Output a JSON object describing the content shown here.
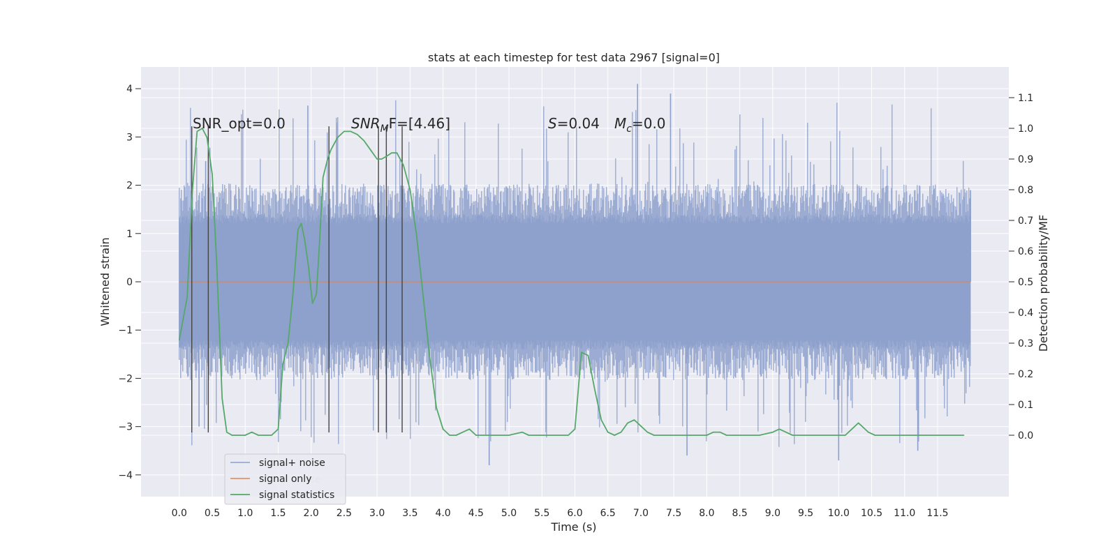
{
  "chart_data": {
    "type": "line",
    "title": "stats at each timestep for test data 2967 [signal=0]",
    "xlabel": "Time (s)",
    "ylabel": "Whitened strain",
    "y2label": "Detection probability/MF",
    "xlim": [
      -0.58,
      12.58
    ],
    "ylim": [
      -4.45,
      4.45
    ],
    "y2lim": [
      -0.2,
      1.2
    ],
    "x_ticks": [
      0.0,
      0.5,
      1.0,
      1.5,
      2.0,
      2.5,
      3.0,
      3.5,
      4.0,
      4.5,
      5.0,
      5.5,
      6.0,
      6.5,
      7.0,
      7.5,
      8.0,
      8.5,
      9.0,
      9.5,
      10.0,
      10.5,
      11.0,
      11.5
    ],
    "x_tick_labels": [
      "0.0",
      "0.5",
      "1.0",
      "1.5",
      "2.0",
      "2.5",
      "3.0",
      "3.5",
      "4.0",
      "4.5",
      "5.0",
      "5.5",
      "6.0",
      "6.5",
      "7.0",
      "7.5",
      "8.0",
      "8.5",
      "9.0",
      "9.5",
      "10.0",
      "10.5",
      "11.0",
      "11.5"
    ],
    "y_ticks": [
      -4,
      -3,
      -2,
      -1,
      0,
      1,
      2,
      3,
      4
    ],
    "y_tick_labels": [
      "−4",
      "−3",
      "−2",
      "−1",
      "0",
      "1",
      "2",
      "3",
      "4"
    ],
    "y2_ticks": [
      0.0,
      0.1,
      0.2,
      0.3,
      0.4,
      0.5,
      0.6,
      0.7,
      0.8,
      0.9,
      1.0,
      1.1
    ],
    "y2_tick_labels": [
      "0.0",
      "0.1",
      "0.2",
      "0.3",
      "0.4",
      "0.5",
      "0.6",
      "0.7",
      "0.8",
      "0.9",
      "1.0",
      "1.1"
    ],
    "grid": true,
    "legend_position": "lower-left",
    "colors": {
      "plot_bg": "#eaeaf2",
      "noise": "#8da0cb",
      "signal_only": "#dd8452",
      "statistics": "#55a868",
      "vline": "#444444"
    },
    "series": [
      {
        "name": "signal+ noise",
        "axis": "left",
        "x_range": [
          0.0,
          12.0
        ],
        "envelope": {
          "core_min": -1.3,
          "core_max": 1.3,
          "mid_min": -2.0,
          "mid_max": 2.0,
          "peak_min": -3.8,
          "peak_max": 4.1
        }
      },
      {
        "name": "signal only",
        "axis": "left",
        "x": [
          0.0,
          12.0
        ],
        "y": [
          0.0,
          0.0
        ]
      },
      {
        "name": "signal statistics",
        "axis": "right",
        "x": [
          0.0,
          0.12,
          0.2,
          0.27,
          0.35,
          0.42,
          0.5,
          0.57,
          0.65,
          0.72,
          0.8,
          0.9,
          1.0,
          1.1,
          1.2,
          1.3,
          1.4,
          1.5,
          1.57,
          1.65,
          1.72,
          1.8,
          1.85,
          1.9,
          1.96,
          2.02,
          2.08,
          2.12,
          2.18,
          2.25,
          2.3,
          2.4,
          2.5,
          2.6,
          2.7,
          2.8,
          2.9,
          3.0,
          3.07,
          3.15,
          3.22,
          3.3,
          3.4,
          3.5,
          3.6,
          3.7,
          3.8,
          3.9,
          4.0,
          4.1,
          4.2,
          4.3,
          4.4,
          4.5,
          4.6,
          4.8,
          5.0,
          5.2,
          5.3,
          5.5,
          5.7,
          5.9,
          6.0,
          6.1,
          6.2,
          6.3,
          6.4,
          6.5,
          6.6,
          6.7,
          6.8,
          6.9,
          7.0,
          7.1,
          7.2,
          7.4,
          7.6,
          7.8,
          8.0,
          8.1,
          8.2,
          8.3,
          8.4,
          8.6,
          8.8,
          9.0,
          9.1,
          9.2,
          9.3,
          9.5,
          9.7,
          9.9,
          10.1,
          10.2,
          10.3,
          10.35,
          10.45,
          10.55,
          10.7,
          11.0,
          11.3,
          11.6,
          11.9
        ],
        "y": [
          0.31,
          0.45,
          0.8,
          0.99,
          1.0,
          0.97,
          0.85,
          0.55,
          0.12,
          0.01,
          0.0,
          0.0,
          0.0,
          0.01,
          0.0,
          0.0,
          0.0,
          0.02,
          0.23,
          0.3,
          0.45,
          0.67,
          0.69,
          0.64,
          0.55,
          0.43,
          0.46,
          0.6,
          0.84,
          0.9,
          0.93,
          0.97,
          0.99,
          0.99,
          0.98,
          0.96,
          0.93,
          0.9,
          0.9,
          0.91,
          0.92,
          0.92,
          0.88,
          0.8,
          0.65,
          0.45,
          0.25,
          0.09,
          0.02,
          0.0,
          0.0,
          0.01,
          0.02,
          0.0,
          0.0,
          0.0,
          0.0,
          0.01,
          0.0,
          0.0,
          0.0,
          0.0,
          0.02,
          0.27,
          0.26,
          0.15,
          0.05,
          0.01,
          0.0,
          0.01,
          0.04,
          0.05,
          0.03,
          0.01,
          0.0,
          0.0,
          0.0,
          0.0,
          0.0,
          0.01,
          0.01,
          0.0,
          0.0,
          0.0,
          0.0,
          0.01,
          0.02,
          0.01,
          0.0,
          0.0,
          0.0,
          0.0,
          0.0,
          0.02,
          0.04,
          0.03,
          0.01,
          0.0,
          0.0,
          0.0,
          0.0,
          0.0,
          0.0
        ]
      }
    ],
    "vertical_lines": {
      "x": [
        0.19,
        0.44,
        2.27,
        3.02,
        3.14,
        3.38
      ],
      "y_range": [
        -3.12,
        3.22
      ]
    },
    "annotations": [
      {
        "id": "snr-opt",
        "text": "SNR_opt=0.0"
      },
      {
        "id": "snr-mf",
        "base": "SNR",
        "sub": "M",
        "rest": "F=[4.46]"
      },
      {
        "id": "s-value",
        "base": "S",
        "rest": "=0.04"
      },
      {
        "id": "mc-value",
        "base": "M",
        "sub": "c",
        "rest": "=0.0"
      }
    ],
    "legend_overlap_text": "ise"
  }
}
